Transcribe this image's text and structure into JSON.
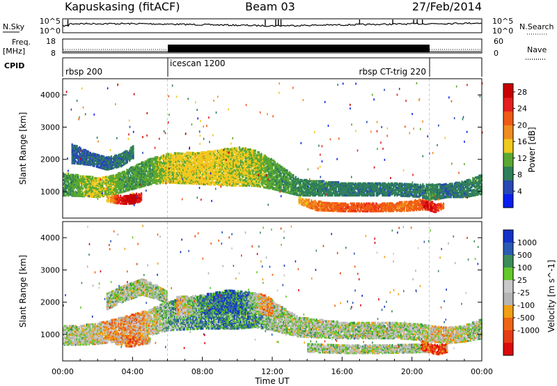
{
  "header": {
    "station": "Kapuskasing (fitACF)",
    "beam": "Beam 03",
    "date": "27/Feb/2014"
  },
  "noise_panel": {
    "left_label": "N.Sky",
    "right_label": "N.Search",
    "left_ticks": [
      "10^5",
      "10^0"
    ],
    "right_ticks": [
      "10^5",
      "10^0"
    ]
  },
  "freq_panel": {
    "left_label_1": "Freq.",
    "left_label_2": "[MHz]",
    "right_label": "Nave",
    "left_ticks": [
      "18",
      "8"
    ],
    "right_ticks": [
      "60",
      "0"
    ],
    "cpid_label": "CPID"
  },
  "cpid_segments": [
    {
      "label": "rbsp 200",
      "start_h": 0,
      "end_h": 6
    },
    {
      "label": "icescan 1200",
      "start_h": 6,
      "end_h": 21
    },
    {
      "label": "rbsp CT-trig 220",
      "start_h": 21,
      "end_h": 24
    }
  ],
  "colors": {
    "power_scale": [
      "#0a1ef0",
      "#2848b4",
      "#2f7f5a",
      "#5aa832",
      "#f0c81e",
      "#f08c1e",
      "#f05a14",
      "#e61e1e",
      "#c80000"
    ],
    "velocity_scale": [
      "#1432c8",
      "#2a5ab4",
      "#3c8c5a",
      "#64c82a",
      "#c8c8c8",
      "#b4b4b4",
      "#f0a014",
      "#f06414",
      "#e63c14",
      "#dc0a0a"
    ]
  },
  "chart_data": [
    {
      "type": "heatmap",
      "title": "",
      "xlabel": "",
      "ylabel": "Slant Range [km]",
      "x_unit": "hours UT",
      "xlim": [
        0,
        24
      ],
      "ylim": [
        180,
        4500
      ],
      "yticks": [
        "1000",
        "2000",
        "3000",
        "4000"
      ],
      "colorbar_label": "Power [dB]",
      "colorbar_ticks": [
        "4",
        "8",
        "12",
        "16",
        "20",
        "24",
        "28"
      ],
      "colorbar_range": [
        0,
        30
      ],
      "bands": [
        {
          "t": [
            0.0,
            1.0,
            2.0,
            3.0,
            4.0,
            5.0,
            6.0,
            8.0,
            10.0,
            11.0,
            12.0,
            13.5,
            16.0,
            19.0,
            20.5,
            21.0,
            22.0,
            23.0,
            24.0
          ],
          "r": [
            1250,
            1200,
            1150,
            1250,
            1450,
            1650,
            1750,
            1750,
            1800,
            1750,
            1550,
            1150,
            1100,
            1100,
            1050,
            1000,
            1050,
            1100,
            1250
          ],
          "w": [
            350,
            320,
            300,
            300,
            350,
            400,
            450,
            500,
            600,
            550,
            450,
            250,
            200,
            200,
            200,
            250,
            200,
            250,
            300
          ],
          "v": [
            9,
            12,
            14,
            12,
            10,
            11,
            14,
            15,
            14,
            13,
            11,
            9,
            8,
            8,
            8,
            9,
            7,
            8,
            9
          ]
        },
        {
          "t": [
            0.5,
            1.5,
            2.5,
            3.3,
            4.0
          ],
          "r": [
            2200,
            2050,
            1900,
            2000,
            2250
          ],
          "w": [
            300,
            200,
            200,
            200,
            200
          ],
          "v": [
            6,
            6,
            7,
            8,
            8
          ]
        },
        {
          "t": [
            2.5,
            3.0,
            3.5,
            4.0,
            4.5
          ],
          "r": [
            800,
            780,
            760,
            800,
            850
          ],
          "w": [
            80,
            120,
            120,
            150,
            120
          ],
          "v": [
            16,
            22,
            28,
            30,
            24
          ]
        },
        {
          "t": [
            13.5,
            14.5,
            16.0,
            18.0,
            19.5,
            20.5,
            21.2
          ],
          "r": [
            750,
            580,
            530,
            530,
            560,
            620,
            580
          ],
          "w": [
            100,
            140,
            120,
            120,
            140,
            160,
            120
          ],
          "v": [
            16,
            20,
            22,
            22,
            20,
            22,
            24
          ]
        },
        {
          "t": [
            20.5,
            21.0,
            21.3,
            21.8
          ],
          "r": [
            650,
            550,
            500,
            600
          ],
          "w": [
            80,
            120,
            120,
            80
          ],
          "v": [
            24,
            27,
            25,
            20
          ]
        }
      ]
    },
    {
      "type": "heatmap",
      "title": "",
      "xlabel": "Time UT",
      "ylabel": "Slant Range [km]",
      "x_unit": "hours UT",
      "xlim": [
        0,
        24
      ],
      "ylim": [
        180,
        4500
      ],
      "xticks": [
        "00:00",
        "04:00",
        "08:00",
        "12:00",
        "16:00",
        "20:00",
        "00:00"
      ],
      "yticks": [
        "1000",
        "2000",
        "3000",
        "4000"
      ],
      "colorbar_label": "Velocity [m s^-1]",
      "colorbar_ticks": [
        "1000",
        "500",
        "100",
        "25",
        "-25",
        "-100",
        "-500",
        "-1000"
      ],
      "bands": [
        {
          "t": [
            0.0,
            1.0,
            2.0,
            3.0,
            4.0,
            5.0,
            6.0,
            8.0,
            10.0,
            11.0,
            12.0,
            13.5,
            16.0,
            19.0,
            20.5,
            21.0,
            22.0,
            23.0,
            24.0
          ],
          "r": [
            1000,
            1000,
            1050,
            1150,
            1250,
            1400,
            1600,
            1700,
            1750,
            1750,
            1600,
            1250,
            1150,
            1150,
            1100,
            1050,
            1000,
            1050,
            1200
          ],
          "w": [
            300,
            300,
            320,
            350,
            400,
            400,
            450,
            500,
            550,
            500,
            450,
            300,
            250,
            250,
            250,
            250,
            250,
            250,
            300
          ],
          "v": [
            4,
            4,
            5,
            6,
            6,
            5,
            3,
            2,
            2,
            2,
            4,
            4,
            4,
            4,
            4,
            5,
            5,
            4,
            4
          ]
        },
        {
          "t": [
            2.5,
            3.5,
            4.5,
            5.5,
            6.0
          ],
          "r": [
            2050,
            2300,
            2500,
            2300,
            2150
          ],
          "w": [
            250,
            250,
            250,
            200,
            200
          ],
          "v": [
            4,
            4,
            4,
            4,
            4
          ]
        },
        {
          "t": [
            3.0,
            3.5,
            4.0,
            4.5,
            5.0
          ],
          "r": [
            850,
            800,
            800,
            830,
            850
          ],
          "w": [
            120,
            150,
            150,
            120,
            100
          ],
          "v": [
            6,
            6,
            7,
            6,
            5
          ]
        },
        {
          "t": [
            6.5,
            8.0,
            9.5,
            10.5,
            11.5,
            12.0
          ],
          "r": [
            1900,
            1950,
            2050,
            2000,
            1950,
            1850
          ],
          "w": [
            300,
            300,
            350,
            350,
            300,
            250
          ],
          "v": [
            6,
            2,
            1,
            2,
            6,
            6
          ]
        },
        {
          "t": [
            14.0,
            16.0,
            18.0,
            20.0,
            21.0
          ],
          "r": [
            600,
            560,
            560,
            580,
            600
          ],
          "w": [
            120,
            120,
            120,
            120,
            120
          ],
          "v": [
            4,
            4,
            4,
            4,
            4
          ]
        },
        {
          "t": [
            20.5,
            21.0,
            21.5,
            22.0
          ],
          "r": [
            700,
            600,
            550,
            600
          ],
          "w": [
            150,
            150,
            150,
            120
          ],
          "v": [
            7,
            8,
            8,
            7
          ]
        }
      ]
    }
  ]
}
